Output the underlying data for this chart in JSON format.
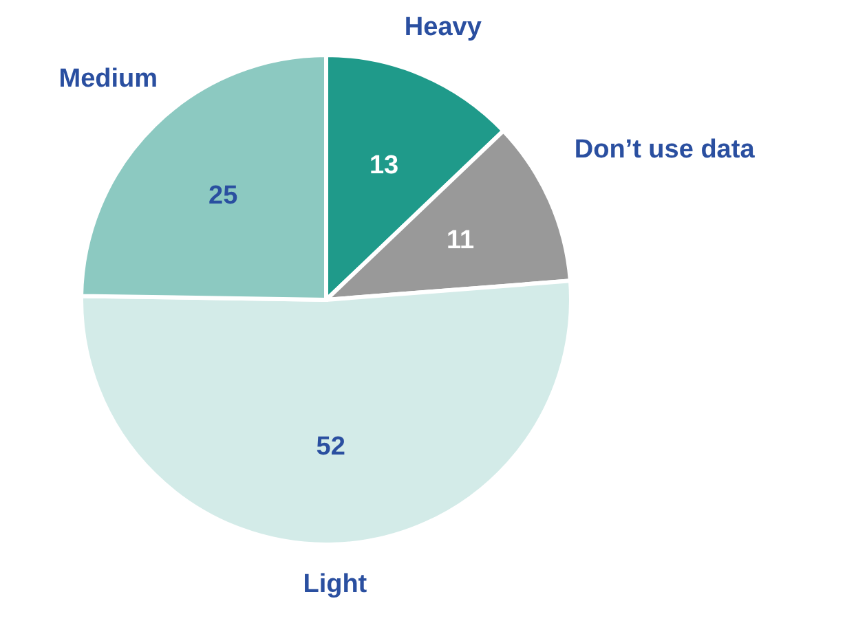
{
  "chart_data": {
    "type": "pie",
    "categories": [
      "Heavy",
      "Don’t use data",
      "Light",
      "Medium"
    ],
    "values": [
      13,
      11,
      52,
      25
    ],
    "colors": [
      "#1f9a8a",
      "#999999",
      "#d3ebe8",
      "#8cc9c1"
    ],
    "data_labels": true
  }
}
